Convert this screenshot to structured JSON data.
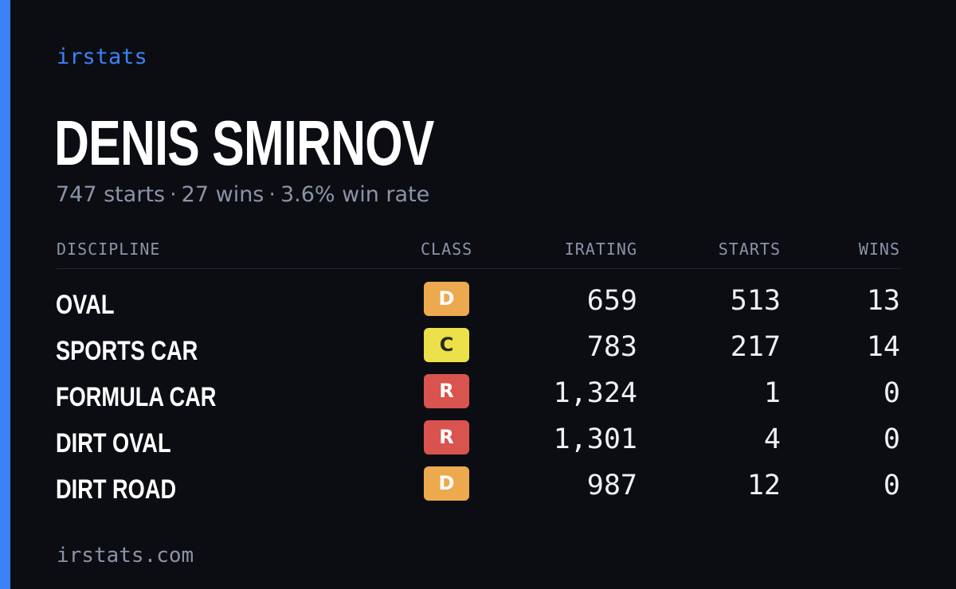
{
  "brand": "irstats",
  "player": {
    "name": "DENIS SMIRNOV",
    "starts_text": "747 starts",
    "wins_text": "27 wins",
    "win_rate_text": "3.6% win rate",
    "separator": "·"
  },
  "table": {
    "headers": {
      "discipline": "DISCIPLINE",
      "class": "CLASS",
      "irating": "IRATING",
      "starts": "STARTS",
      "wins": "WINS"
    },
    "rows": [
      {
        "discipline": "OVAL",
        "class": "D",
        "irating": "659",
        "starts": "513",
        "wins": "13"
      },
      {
        "discipline": "SPORTS CAR",
        "class": "C",
        "irating": "783",
        "starts": "217",
        "wins": "14"
      },
      {
        "discipline": "FORMULA CAR",
        "class": "R",
        "irating": "1,324",
        "starts": "1",
        "wins": "0"
      },
      {
        "discipline": "DIRT OVAL",
        "class": "R",
        "irating": "1,301",
        "starts": "4",
        "wins": "0"
      },
      {
        "discipline": "DIRT ROAD",
        "class": "D",
        "irating": "987",
        "starts": "12",
        "wins": "0"
      }
    ]
  },
  "class_colors": {
    "D": {
      "bg": "#eda94e",
      "fg": "#ffffff"
    },
    "C": {
      "bg": "#ece14a",
      "fg": "#2a2a18"
    },
    "R": {
      "bg": "#d9534f",
      "fg": "#ffffff"
    }
  },
  "colors": {
    "accent": "#3b82f6",
    "background": "#0b0d13",
    "muted_text": "#8b93a7"
  },
  "footer": "irstats.com"
}
